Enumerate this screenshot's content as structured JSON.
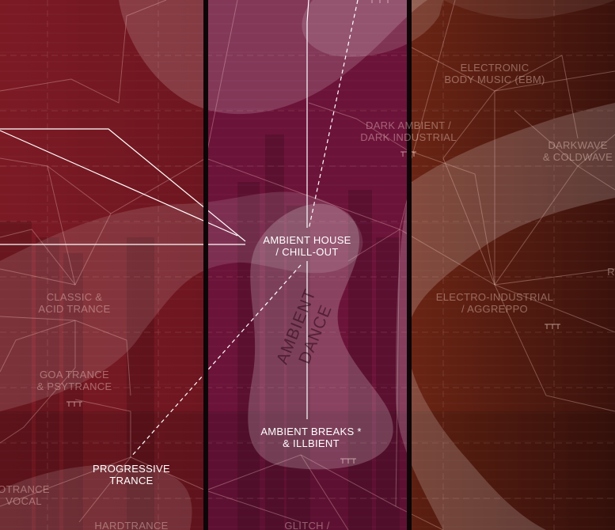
{
  "zone": {
    "title_line1": "AMBIENT",
    "title_line2": "DANCE"
  },
  "genres": {
    "ebm": {
      "line1": "ELECTRONIC",
      "line2": "BODY MUSIC (EBM)"
    },
    "dark_ambient": {
      "line1": "DARK AMBIENT /",
      "line2": "DARK INDUSTRIAL"
    },
    "darkwave": {
      "line1": "DARKWAVE",
      "line2": "& COLDWAVE"
    },
    "ambient_house": {
      "line1": "AMBIENT HOUSE",
      "line2": "/ CHILL-OUT"
    },
    "classic_acid": {
      "line1": "CLASSIC &",
      "line2": "ACID TRANCE"
    },
    "electro_industrial": {
      "line1": "ELECTRO-INDUSTRIAL",
      "line2": "/ AGGREPPO"
    },
    "goa": {
      "line1": "GOA TRANCE",
      "line2": "& PSYTRANCE"
    },
    "ambient_breaks": {
      "line1": "AMBIENT BREAKS *",
      "line2": "& ILLBIENT"
    },
    "progressive": {
      "line1": "PROGRESSIVE",
      "line2": "TRANCE"
    },
    "vocal": {
      "line1": "OTRANCE",
      "line2": "VOCAL"
    },
    "hardtrance": {
      "line1": "HARDTRANCE"
    },
    "glitch": {
      "line1": "GLITCH /"
    },
    "edge_r": {
      "line1": "R"
    }
  },
  "colors": {
    "left_column": "#7a1822",
    "middle_column": "#6e1239",
    "right_column": "#5e1c10",
    "blob": "#ffffff",
    "divider": "#0d0507"
  }
}
